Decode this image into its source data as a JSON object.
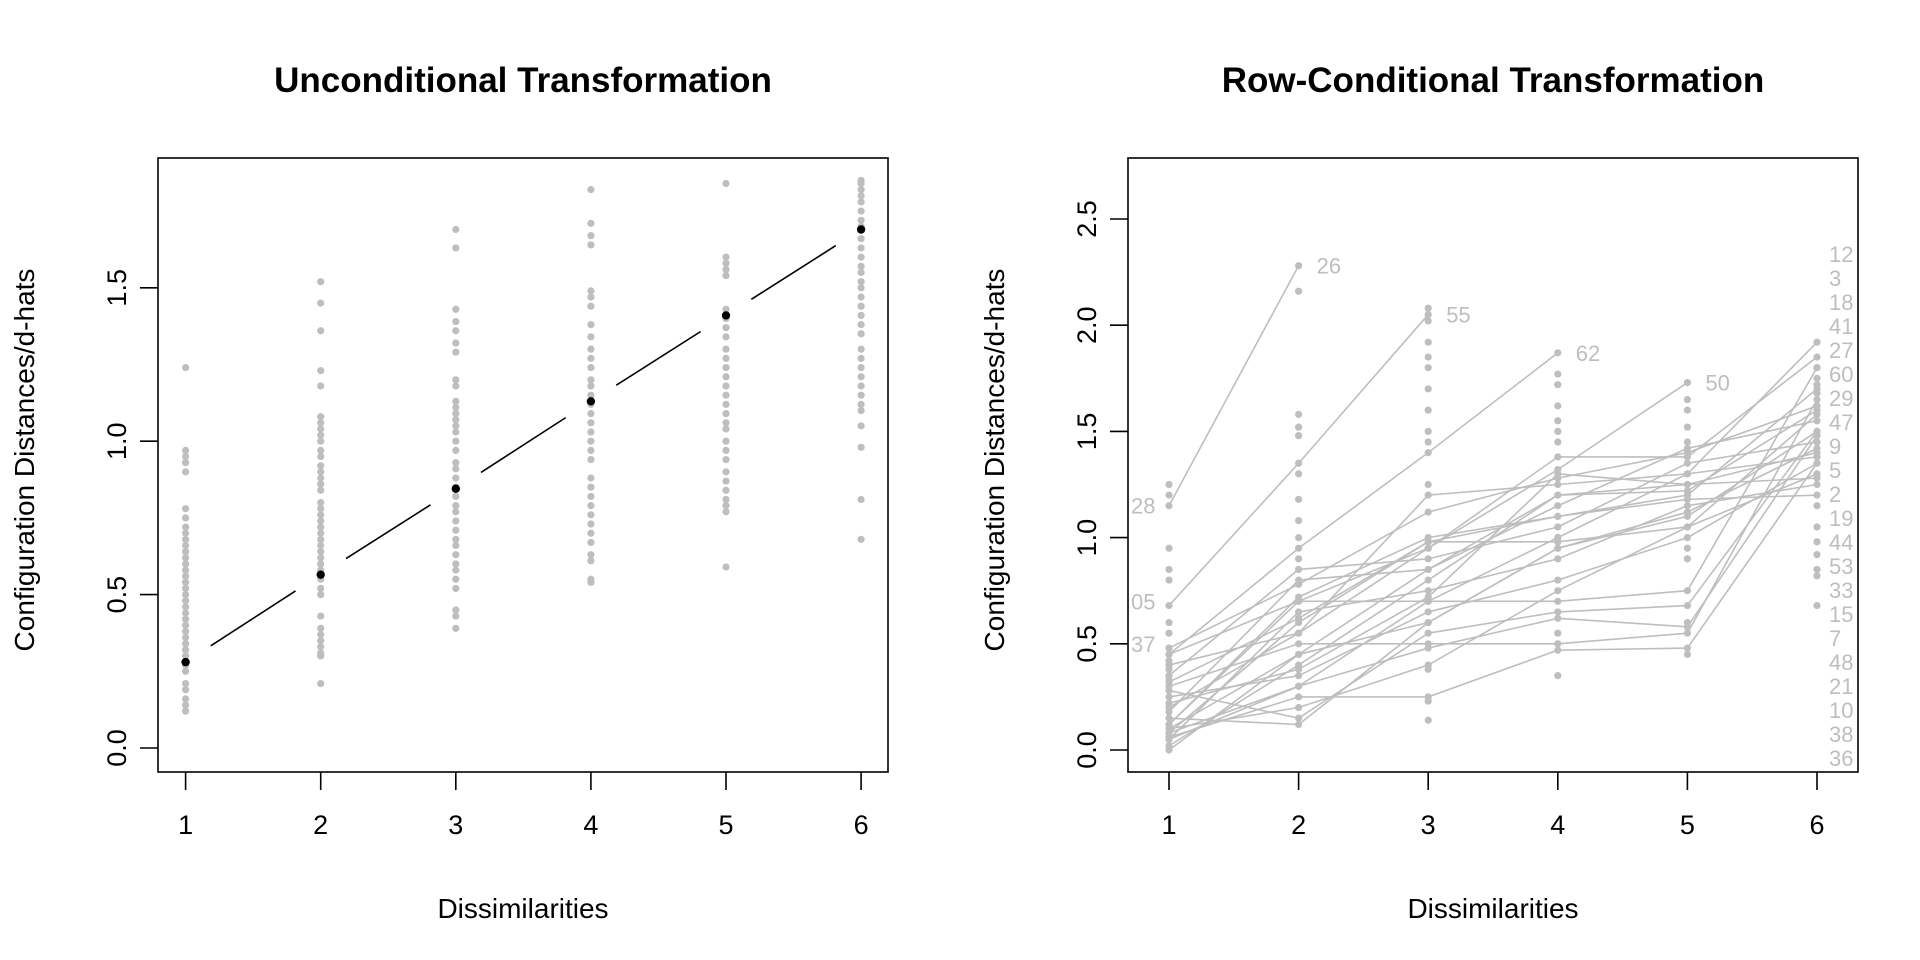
{
  "colors": {
    "points": "#bebebe",
    "fit": "#000000",
    "lines": "#bebebe"
  },
  "chart_data": [
    {
      "type": "scatter",
      "title": "Unconditional Transformation",
      "xlabel": "Dissimilarities",
      "ylabel": "Configuration Distances/d-hats",
      "xlim": [
        0.8,
        6.2
      ],
      "ylim": [
        -0.07,
        1.93
      ],
      "xticks": [
        "1",
        "2",
        "3",
        "4",
        "5",
        "6"
      ],
      "yticks": [
        "0.0",
        "0.5",
        "1.0",
        "1.5"
      ],
      "points": {
        "1": [
          1.24,
          0.97,
          0.95,
          0.93,
          0.9,
          0.78,
          0.75,
          0.72,
          0.7,
          0.68,
          0.66,
          0.64,
          0.62,
          0.6,
          0.58,
          0.56,
          0.54,
          0.52,
          0.5,
          0.48,
          0.46,
          0.44,
          0.42,
          0.4,
          0.38,
          0.36,
          0.34,
          0.32,
          0.3,
          0.27,
          0.25,
          0.21,
          0.19,
          0.16,
          0.14,
          0.12
        ],
        "2": [
          1.52,
          1.45,
          1.36,
          1.23,
          1.18,
          1.08,
          1.06,
          1.04,
          1.02,
          1.0,
          0.97,
          0.95,
          0.92,
          0.9,
          0.88,
          0.86,
          0.84,
          0.8,
          0.78,
          0.76,
          0.74,
          0.72,
          0.7,
          0.68,
          0.66,
          0.64,
          0.62,
          0.6,
          0.58,
          0.55,
          0.52,
          0.5,
          0.43,
          0.39,
          0.37,
          0.35,
          0.33,
          0.31,
          0.3,
          0.21
        ],
        "3": [
          1.69,
          1.63,
          1.43,
          1.39,
          1.36,
          1.32,
          1.29,
          1.2,
          1.18,
          1.13,
          1.11,
          1.09,
          1.07,
          1.05,
          1.03,
          1.0,
          0.97,
          0.93,
          0.91,
          0.88,
          0.85,
          0.82,
          0.79,
          0.77,
          0.74,
          0.71,
          0.68,
          0.66,
          0.63,
          0.6,
          0.58,
          0.55,
          0.52,
          0.45,
          0.43,
          0.39
        ],
        "4": [
          1.82,
          1.71,
          1.67,
          1.64,
          1.49,
          1.47,
          1.44,
          1.38,
          1.34,
          1.3,
          1.27,
          1.24,
          1.2,
          1.18,
          1.15,
          1.12,
          1.09,
          1.06,
          1.03,
          1.0,
          0.97,
          0.94,
          0.88,
          0.85,
          0.82,
          0.79,
          0.76,
          0.73,
          0.7,
          0.67,
          0.63,
          0.61,
          0.55,
          0.54
        ],
        "5": [
          1.84,
          1.6,
          1.58,
          1.56,
          1.54,
          1.43,
          1.4,
          1.37,
          1.34,
          1.3,
          1.27,
          1.24,
          1.21,
          1.18,
          1.15,
          1.12,
          1.09,
          1.06,
          1.04,
          1.0,
          0.97,
          0.94,
          0.9,
          0.87,
          0.84,
          0.81,
          0.79,
          0.77,
          0.59
        ],
        "6": [
          1.85,
          1.84,
          1.82,
          1.8,
          1.78,
          1.75,
          1.72,
          1.7,
          1.66,
          1.63,
          1.6,
          1.57,
          1.55,
          1.52,
          1.5,
          1.47,
          1.44,
          1.41,
          1.38,
          1.35,
          1.3,
          1.27,
          1.24,
          1.21,
          1.18,
          1.15,
          1.12,
          1.1,
          1.05,
          0.98,
          0.81,
          0.68
        ]
      },
      "fit": {
        "x": [
          1,
          2,
          3,
          4,
          5,
          6
        ],
        "y": [
          0.28,
          0.565,
          0.845,
          1.13,
          1.41,
          1.69
        ]
      }
    },
    {
      "type": "line",
      "title": "Row-Conditional Transformation",
      "xlabel": "Dissimilarities",
      "ylabel": "Configuration Distances/d-hats",
      "xlim": [
        0.7,
        6.3
      ],
      "ylim": [
        -0.07,
        2.8
      ],
      "xticks": [
        "1",
        "2",
        "3",
        "4",
        "5",
        "6"
      ],
      "yticks": [
        "0.0",
        "0.5",
        "1.0",
        "1.5",
        "2.0",
        "2.5"
      ],
      "rows": [
        {
          "label": "26",
          "y": [
            1.15,
            2.28
          ]
        },
        {
          "label": "55",
          "y": [
            0.68,
            1.35,
            2.05
          ]
        },
        {
          "label": "62",
          "y": [
            0.45,
            0.95,
            1.4,
            1.87
          ]
        },
        {
          "label": "50",
          "y": [
            0.2,
            0.55,
            0.95,
            1.32,
            1.73
          ]
        },
        {
          "label": "9",
          "y": [
            0.1,
            0.45,
            0.85,
            1.15,
            1.42,
            1.55
          ]
        },
        {
          "label": "12",
          "y": [
            0.05,
            0.3,
            0.7,
            1.0,
            1.3,
            1.92
          ]
        },
        {
          "label": "3",
          "y": [
            0.12,
            0.7,
            0.95,
            1.38,
            1.38,
            1.85
          ]
        },
        {
          "label": "41",
          "y": [
            0.08,
            0.6,
            0.98,
            1.1,
            1.2,
            1.7
          ]
        },
        {
          "label": "18",
          "y": [
            0.45,
            0.7,
            0.7,
            0.7,
            0.75,
            1.8
          ]
        },
        {
          "label": "27",
          "y": [
            0.3,
            0.5,
            0.5,
            0.5,
            0.55,
            1.65
          ]
        },
        {
          "label": "5",
          "y": [
            0.15,
            0.12,
            0.6,
            0.95,
            1.1,
            1.5
          ]
        },
        {
          "label": "33",
          "y": [
            0.02,
            0.4,
            0.8,
            1.2,
            1.25,
            1.4
          ]
        },
        {
          "label": "44",
          "y": [
            0.35,
            0.85,
            0.9,
            1.05,
            1.35,
            1.45
          ]
        },
        {
          "label": "7",
          "y": [
            0.25,
            0.35,
            0.65,
            0.8,
            1.0,
            1.35
          ]
        },
        {
          "label": "21",
          "y": [
            0.1,
            0.2,
            0.4,
            0.75,
            1.05,
            1.3
          ]
        },
        {
          "label": "38",
          "y": [
            0.05,
            0.65,
            0.75,
            0.9,
            1.15,
            1.25
          ]
        },
        {
          "label": "15",
          "y": [
            0.4,
            0.55,
            1.2,
            1.25,
            1.3,
            1.38
          ]
        },
        {
          "label": "29",
          "y": [
            0.18,
            0.8,
            0.85,
            1.2,
            1.22,
            1.6
          ]
        },
        {
          "label": "48",
          "y": [
            0.06,
            0.25,
            0.25,
            0.47,
            0.48,
            1.35
          ]
        },
        {
          "label": "2",
          "y": [
            0.28,
            0.15,
            0.55,
            0.65,
            0.68,
            1.5
          ]
        },
        {
          "label": "36",
          "y": [
            0.12,
            0.72,
            1.0,
            1.1,
            1.18,
            1.2
          ]
        },
        {
          "label": "53",
          "y": [
            0.0,
            0.45,
            0.6,
            0.95,
            1.12,
            1.42
          ]
        },
        {
          "label": "10",
          "y": [
            0.22,
            0.38,
            0.72,
            1.3,
            1.25,
            1.28
          ]
        },
        {
          "label": "47",
          "y": [
            0.32,
            0.62,
            0.98,
            0.98,
            1.05,
            1.58
          ]
        },
        {
          "label": "19",
          "y": [
            0.08,
            0.3,
            0.48,
            0.62,
            0.58,
            1.48
          ]
        },
        {
          "label": "60",
          "y": [
            0.48,
            0.78,
            1.12,
            1.28,
            1.4,
            1.62
          ]
        }
      ],
      "left_labels": [
        {
          "label": "28",
          "y": 1.15
        },
        {
          "label": "05",
          "y": 0.7
        },
        {
          "label": "37",
          "y": 0.5
        }
      ],
      "extra_points": {
        "1": [
          1.25,
          1.2,
          0.95,
          0.85,
          0.8,
          0.6,
          0.55,
          0.48,
          0.42,
          0.38,
          0.33
        ],
        "2": [
          2.16,
          1.58,
          1.52,
          1.48,
          1.3,
          1.18,
          1.08,
          1.0,
          0.9
        ],
        "3": [
          2.08,
          2.02,
          1.92,
          1.85,
          1.8,
          1.7,
          1.6,
          1.5,
          1.45,
          1.25,
          0.38,
          0.23,
          0.14
        ],
        "4": [
          1.77,
          1.72,
          1.62,
          1.55,
          1.5,
          1.45,
          1.0,
          0.55,
          0.35
        ],
        "5": [
          1.65,
          1.6,
          1.52,
          1.45,
          0.95,
          0.9,
          0.6,
          0.45
        ],
        "6": [
          1.8,
          1.75,
          1.72,
          1.68,
          1.3,
          1.15,
          1.05,
          0.98,
          0.92,
          0.85,
          0.82,
          0.68
        ]
      }
    }
  ]
}
